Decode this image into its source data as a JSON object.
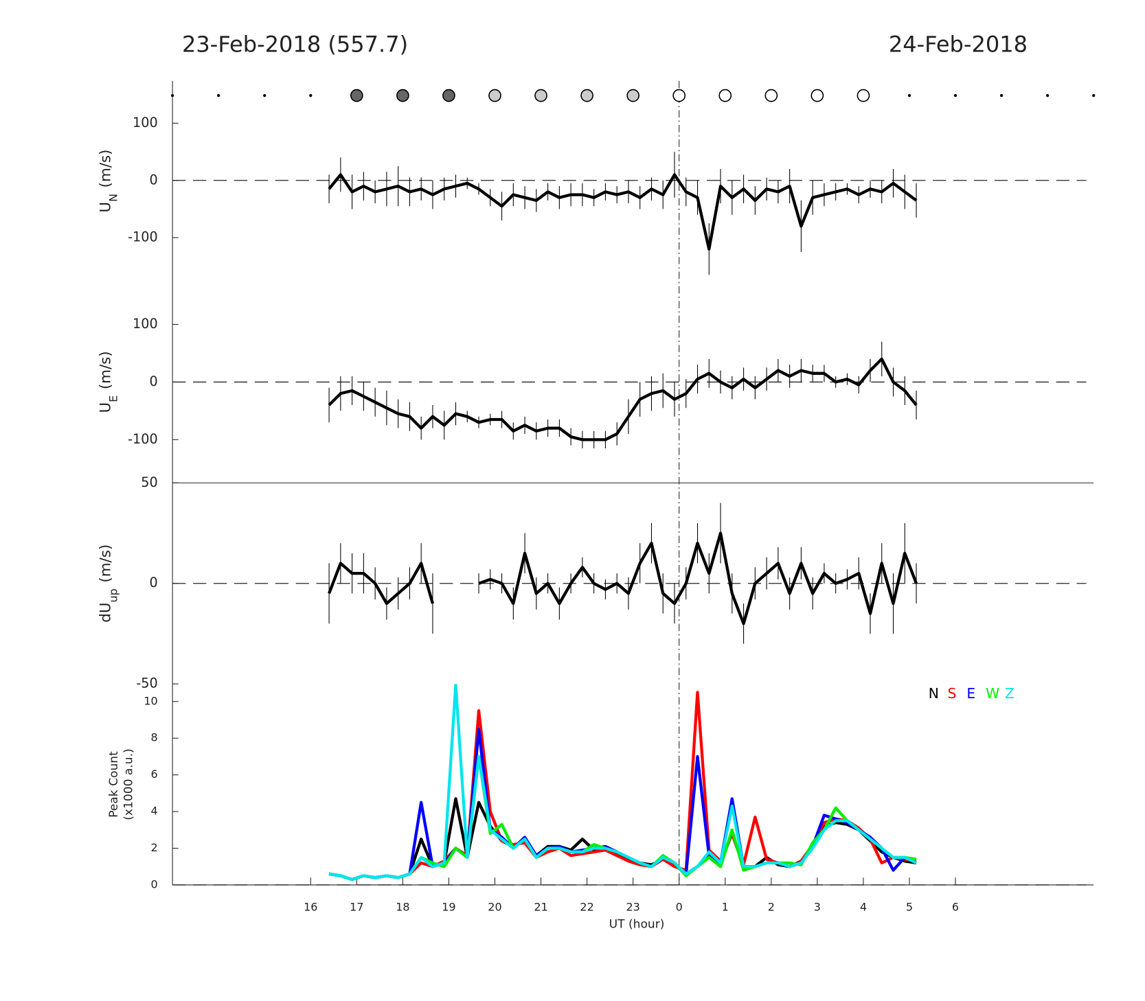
{
  "chart_data": [
    {
      "type": "line",
      "title": "23-Feb-2018 (557.7)",
      "title_right": "24-Feb-2018",
      "ylabel": "U",
      "ylabel_sub": "N",
      "ylabel_unit": "(m/s)",
      "xlim": [
        13,
        33
      ],
      "ylim": [
        -176,
        174
      ],
      "yticks": [
        -100,
        0,
        100
      ],
      "zero_line": true,
      "vline": 24,
      "color": "#000000",
      "markers": {
        "x": [
          13,
          14,
          15,
          16,
          17,
          18,
          19,
          20,
          21,
          22,
          23,
          24,
          25,
          26,
          27,
          28,
          29,
          30,
          31,
          32,
          33
        ],
        "colors": [
          "#000000",
          "#000000",
          "#000000",
          "#000000",
          "#666666",
          "#666666",
          "#666666",
          "#cccccc",
          "#cccccc",
          "#cccccc",
          "#cccccc",
          "#ffffff",
          "#ffffff",
          "#ffffff",
          "#ffffff",
          "#ffffff",
          "#000000",
          "#000000",
          "#000000",
          "#000000",
          "#000000"
        ],
        "sizes": [
          2,
          2,
          2,
          2,
          8,
          8,
          8,
          8,
          8,
          8,
          8,
          8,
          8,
          8,
          8,
          8,
          2,
          2,
          2,
          2,
          2
        ]
      },
      "x": [
        16.4,
        16.65,
        16.9,
        17.15,
        17.4,
        17.65,
        17.9,
        18.15,
        18.4,
        18.65,
        18.9,
        19.15,
        19.4,
        19.65,
        19.9,
        20.15,
        20.4,
        20.65,
        20.9,
        21.15,
        21.4,
        21.65,
        21.9,
        22.15,
        22.4,
        22.65,
        22.9,
        23.15,
        23.4,
        23.65,
        23.9,
        24.15,
        24.4,
        24.65,
        24.9,
        25.15,
        25.4,
        25.65,
        25.9,
        26.15,
        26.4,
        26.65,
        26.9,
        27.15,
        27.4,
        27.65,
        27.9,
        28.15,
        28.4,
        28.65,
        28.9,
        29.15
      ],
      "values": [
        -15,
        10,
        -20,
        -10,
        -20,
        -15,
        -10,
        -20,
        -15,
        -25,
        -15,
        -10,
        -5,
        -15,
        -30,
        -45,
        -25,
        -30,
        -35,
        -20,
        -30,
        -25,
        -25,
        -30,
        -20,
        -25,
        -20,
        -30,
        -15,
        -25,
        10,
        -20,
        -30,
        -120,
        -10,
        -30,
        -15,
        -35,
        -15,
        -20,
        -10,
        -80,
        -30,
        -25,
        -20,
        -15,
        -25,
        -15,
        -20,
        -5,
        -20,
        -35
      ],
      "errors": [
        25,
        30,
        30,
        25,
        20,
        30,
        35,
        25,
        20,
        25,
        20,
        20,
        10,
        10,
        15,
        25,
        20,
        20,
        20,
        15,
        20,
        20,
        20,
        15,
        15,
        15,
        20,
        20,
        20,
        25,
        40,
        25,
        30,
        45,
        30,
        30,
        25,
        25,
        20,
        20,
        30,
        45,
        30,
        20,
        15,
        10,
        15,
        15,
        20,
        25,
        30,
        30
      ]
    },
    {
      "type": "line",
      "ylabel": "U",
      "ylabel_sub": "E",
      "ylabel_unit": "(m/s)",
      "xlim": [
        13,
        33
      ],
      "ylim": [
        -175,
        175
      ],
      "yticks": [
        -100,
        0,
        100
      ],
      "zero_line": true,
      "color": "#000000",
      "x": [
        16.4,
        16.65,
        16.9,
        17.15,
        17.4,
        17.65,
        17.9,
        18.15,
        18.4,
        18.65,
        18.9,
        19.15,
        19.4,
        19.65,
        19.9,
        20.15,
        20.4,
        20.65,
        20.9,
        21.15,
        21.4,
        21.65,
        21.9,
        22.15,
        22.4,
        22.65,
        22.9,
        23.15,
        23.4,
        23.65,
        23.9,
        24.15,
        24.4,
        24.65,
        24.9,
        25.15,
        25.4,
        25.65,
        25.9,
        26.15,
        26.4,
        26.65,
        26.9,
        27.15,
        27.4,
        27.65,
        27.9,
        28.15,
        28.4,
        28.65,
        28.9,
        29.15
      ],
      "values": [
        -40,
        -20,
        -15,
        -25,
        -35,
        -45,
        -55,
        -60,
        -80,
        -60,
        -75,
        -55,
        -60,
        -70,
        -65,
        -65,
        -85,
        -75,
        -85,
        -80,
        -80,
        -95,
        -100,
        -100,
        -100,
        -90,
        -60,
        -30,
        -20,
        -15,
        -30,
        -20,
        5,
        15,
        0,
        -10,
        5,
        -10,
        5,
        20,
        10,
        20,
        15,
        15,
        0,
        5,
        -5,
        20,
        40,
        0,
        -15,
        -40
      ],
      "errors": [
        30,
        30,
        25,
        25,
        25,
        30,
        25,
        25,
        20,
        20,
        25,
        20,
        10,
        10,
        10,
        15,
        15,
        15,
        15,
        15,
        15,
        15,
        15,
        15,
        15,
        20,
        30,
        30,
        30,
        30,
        30,
        25,
        25,
        25,
        20,
        20,
        20,
        20,
        20,
        20,
        20,
        20,
        15,
        15,
        10,
        10,
        15,
        20,
        30,
        25,
        25,
        25
      ]
    },
    {
      "type": "line",
      "ylabel": "dU",
      "ylabel_sub": "up",
      "ylabel_unit": "(m/s)",
      "xlim": [
        13,
        33
      ],
      "ylim": [
        -50,
        50
      ],
      "yticks": [
        -50,
        0,
        50
      ],
      "zero_line": true,
      "color": "#000000",
      "x": [
        16.4,
        16.65,
        16.9,
        17.15,
        17.4,
        17.65,
        17.9,
        18.15,
        18.4,
        18.65,
        18.9,
        19.15,
        19.4,
        19.65,
        19.9,
        20.15,
        20.4,
        20.65,
        20.9,
        21.15,
        21.4,
        21.65,
        21.9,
        22.15,
        22.4,
        22.65,
        22.9,
        23.15,
        23.4,
        23.65,
        23.9,
        24.15,
        24.4,
        24.65,
        24.9,
        25.15,
        25.4,
        25.65,
        25.9,
        26.15,
        26.4,
        26.65,
        26.9,
        27.15,
        27.4,
        27.65,
        27.9,
        28.15,
        28.4,
        28.65,
        28.9,
        29.15
      ],
      "values": [
        -5,
        10,
        5,
        5,
        0,
        -10,
        -5,
        0,
        10,
        -10,
        null,
        null,
        null,
        0,
        2,
        0,
        -10,
        15,
        -5,
        0,
        -10,
        0,
        8,
        0,
        -3,
        0,
        -5,
        10,
        20,
        -5,
        -10,
        0,
        20,
        5,
        25,
        -5,
        -20,
        0,
        5,
        10,
        -5,
        10,
        -5,
        5,
        0,
        2,
        5,
        -15,
        10,
        -10,
        15,
        0
      ],
      "errors": [
        15,
        10,
        10,
        10,
        8,
        8,
        8,
        8,
        10,
        15,
        null,
        null,
        null,
        5,
        5,
        5,
        8,
        10,
        8,
        5,
        8,
        5,
        5,
        5,
        5,
        5,
        8,
        10,
        10,
        10,
        10,
        8,
        10,
        10,
        15,
        10,
        10,
        8,
        8,
        8,
        8,
        8,
        8,
        5,
        5,
        5,
        8,
        10,
        10,
        15,
        15,
        10
      ]
    },
    {
      "type": "line",
      "ylabel": "Peak Count",
      "ylabel_unit": "(x1000 a.u.)",
      "xlabel": "UT (hour)",
      "xlim": [
        13,
        33
      ],
      "ylim": [
        0,
        10.96
      ],
      "yticks": [
        0,
        2,
        4,
        6,
        8,
        10
      ],
      "zero_line": true,
      "legend": "upper right",
      "xticks": [
        16,
        17,
        18,
        19,
        20,
        21,
        22,
        23,
        {
          "value": 24,
          "label": "0"
        },
        {
          "value": 25,
          "label": "1"
        },
        {
          "value": 26,
          "label": "2"
        },
        {
          "value": 27,
          "label": "3"
        },
        {
          "value": 28,
          "label": "4"
        },
        {
          "value": 29,
          "label": "5"
        },
        {
          "value": 30,
          "label": "6"
        }
      ],
      "x": [
        16.4,
        16.65,
        16.9,
        17.15,
        17.4,
        17.65,
        17.9,
        18.15,
        18.4,
        18.65,
        18.9,
        19.15,
        19.4,
        19.65,
        19.9,
        20.15,
        20.4,
        20.65,
        20.9,
        21.15,
        21.4,
        21.65,
        21.9,
        22.15,
        22.4,
        22.65,
        22.9,
        23.15,
        23.4,
        23.65,
        23.9,
        24.15,
        24.4,
        24.65,
        24.9,
        25.15,
        25.4,
        25.65,
        25.9,
        26.15,
        26.4,
        26.65,
        26.9,
        27.15,
        27.4,
        27.65,
        27.9,
        28.15,
        28.4,
        28.65,
        28.9,
        29.15
      ],
      "series": [
        {
          "name": "N",
          "color": "#000000",
          "values": [
            0.6,
            0.5,
            0.3,
            0.5,
            0.4,
            0.5,
            0.4,
            0.6,
            2.5,
            1.0,
            1.2,
            4.7,
            1.5,
            4.5,
            3.2,
            2.4,
            2.1,
            2.4,
            1.6,
            2.1,
            2.1,
            1.9,
            2.5,
            1.9,
            2.0,
            1.7,
            1.4,
            1.2,
            1.1,
            1.4,
            1.1,
            0.6,
            1.0,
            1.7,
            1.2,
            2.8,
            1.0,
            1.0,
            1.5,
            1.1,
            1.0,
            1.3,
            2.1,
            3.2,
            3.4,
            3.3,
            3.0,
            2.4,
            1.8,
            1.5,
            1.3,
            1.2
          ]
        },
        {
          "name": "S",
          "color": "#ff0000",
          "values": [
            0.6,
            0.5,
            0.3,
            0.5,
            0.4,
            0.5,
            0.4,
            0.6,
            1.2,
            1.0,
            1.3,
            2.0,
            1.6,
            9.5,
            4.0,
            2.4,
            2.2,
            2.3,
            1.5,
            1.8,
            2.0,
            1.6,
            1.7,
            1.8,
            1.9,
            1.6,
            1.3,
            1.1,
            1.0,
            1.4,
            1.0,
            0.8,
            10.5,
            1.9,
            1.3,
            2.8,
            1.1,
            3.7,
            1.4,
            1.2,
            1.0,
            1.3,
            2.2,
            3.4,
            3.6,
            3.5,
            3.1,
            2.5,
            1.2,
            1.5,
            1.4,
            1.3
          ]
        },
        {
          "name": "E",
          "color": "#0000ff",
          "values": [
            0.6,
            0.5,
            0.3,
            0.5,
            0.4,
            0.5,
            0.4,
            0.6,
            4.5,
            1.0,
            1.2,
            2.0,
            1.5,
            8.5,
            3.0,
            2.6,
            2.0,
            2.6,
            1.6,
            2.0,
            2.1,
            1.8,
            1.9,
            2.0,
            2.1,
            1.8,
            1.5,
            1.2,
            1.0,
            1.5,
            1.2,
            0.6,
            7.0,
            1.6,
            1.2,
            4.7,
            1.0,
            1.0,
            1.2,
            1.2,
            1.0,
            1.2,
            2.1,
            3.8,
            3.6,
            3.4,
            3.0,
            2.6,
            2.0,
            0.8,
            1.5,
            1.2
          ]
        },
        {
          "name": "W",
          "color": "#00ee00",
          "values": [
            0.6,
            0.5,
            0.3,
            0.5,
            0.4,
            0.5,
            0.4,
            0.6,
            1.5,
            1.2,
            1.0,
            2.0,
            1.5,
            7.0,
            2.8,
            3.3,
            2.0,
            2.5,
            1.5,
            2.0,
            2.0,
            1.8,
            1.8,
            2.2,
            2.0,
            1.8,
            1.5,
            1.2,
            1.0,
            1.6,
            1.2,
            0.5,
            1.0,
            1.5,
            1.0,
            3.0,
            0.8,
            1.0,
            1.2,
            1.2,
            1.2,
            1.1,
            2.3,
            3.0,
            4.2,
            3.5,
            3.0,
            2.5,
            2.0,
            1.5,
            1.5,
            1.4
          ]
        },
        {
          "name": "Z",
          "color": "#00e5ee",
          "values": [
            0.6,
            0.5,
            0.3,
            0.5,
            0.4,
            0.5,
            0.4,
            0.6,
            1.5,
            1.0,
            1.2,
            10.9,
            1.5,
            7.0,
            3.0,
            2.5,
            2.0,
            2.5,
            1.5,
            2.0,
            2.0,
            1.8,
            1.8,
            2.0,
            2.0,
            1.8,
            1.5,
            1.2,
            1.0,
            1.5,
            1.2,
            0.6,
            1.0,
            1.8,
            1.2,
            4.3,
            1.0,
            1.0,
            1.2,
            1.2,
            1.0,
            1.2,
            2.0,
            3.0,
            3.5,
            3.5,
            3.0,
            2.5,
            2.0,
            1.5,
            1.5,
            1.2
          ]
        }
      ]
    }
  ]
}
